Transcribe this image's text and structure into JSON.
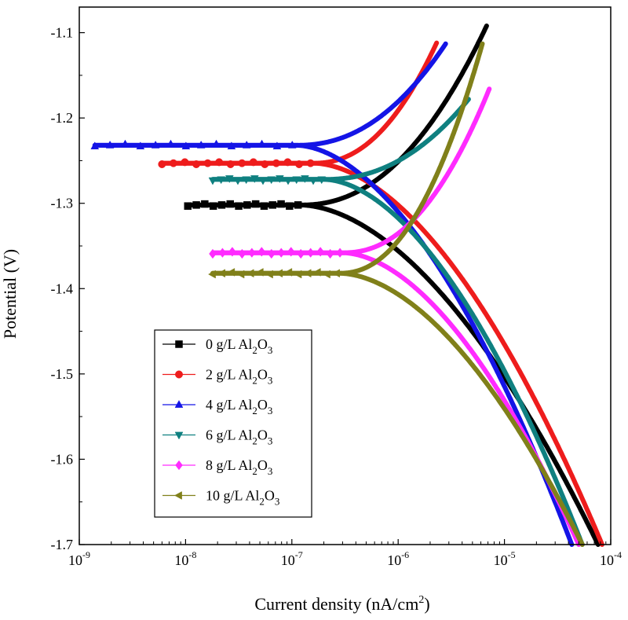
{
  "chart_data": {
    "type": "line",
    "title": "",
    "xlabel": "Current density (nA/cm²)",
    "ylabel": "Potential (V)",
    "xscale": "log",
    "xlim": [
      1e-09,
      0.0001
    ],
    "ylim": [
      -1.7,
      -1.07
    ],
    "x_ticks": [
      1e-09,
      1e-08,
      1e-07,
      1e-06,
      1e-05,
      0.0001
    ],
    "x_tick_labels": [
      {
        "base": "10",
        "exp": "-9"
      },
      {
        "base": "10",
        "exp": "-8"
      },
      {
        "base": "10",
        "exp": "-7"
      },
      {
        "base": "10",
        "exp": "-6"
      },
      {
        "base": "10",
        "exp": "-5"
      },
      {
        "base": "10",
        "exp": "-4"
      }
    ],
    "y_ticks": [
      -1.7,
      -1.6,
      -1.5,
      -1.4,
      -1.3,
      -1.2,
      -1.1
    ],
    "y_tick_labels": [
      "-1.7",
      "-1.6",
      "-1.5",
      "-1.4",
      "-1.3",
      "-1.2",
      "-1.1"
    ],
    "grid": false,
    "legend_position": "bottom-left",
    "series": [
      {
        "name": "0 g/L Al2O3",
        "label_parts": [
          "0 g/L Al",
          "2",
          "O",
          "3"
        ],
        "color": "#000000",
        "marker": "square",
        "ecorr": -1.302,
        "icorr": 1.2e-07,
        "anodic_end": [
          6.8e-06,
          -1.092
        ],
        "cathodic_end": [
          7.6e-05,
          -1.7
        ],
        "start_x": 1.05e-08
      },
      {
        "name": "2 g/L Al2O3",
        "label_parts": [
          "2 g/L Al",
          "2",
          "O",
          "3"
        ],
        "color": "#ee1c1c",
        "marker": "circle",
        "ecorr": -1.253,
        "icorr": 1.6e-07,
        "anodic_end": [
          2.3e-06,
          -1.112
        ],
        "cathodic_end": [
          8.3e-05,
          -1.7
        ],
        "start_x": 6e-09
      },
      {
        "name": "4 g/L Al2O3",
        "label_parts": [
          "4 g/L Al",
          "2",
          "O",
          "3"
        ],
        "color": "#1414e6",
        "marker": "triangle-up",
        "ecorr": -1.232,
        "icorr": 1.1e-07,
        "anodic_end": [
          2.8e-06,
          -1.113
        ],
        "cathodic_end": [
          4.3e-05,
          -1.7
        ],
        "start_x": 1.4e-09
      },
      {
        "name": "6 g/L Al2O3",
        "label_parts": [
          "6 g/L Al",
          "2",
          "O",
          "3"
        ],
        "color": "#0f8080",
        "marker": "triangle-down",
        "ecorr": -1.272,
        "icorr": 2e-07,
        "anodic_end": [
          4.6e-06,
          -1.178
        ],
        "cathodic_end": [
          5.4e-05,
          -1.7
        ],
        "start_x": 1.8e-08
      },
      {
        "name": "8 g/L Al2O3",
        "label_parts": [
          "8 g/L Al",
          "2",
          "O",
          "3"
        ],
        "color": "#ff2bff",
        "marker": "diamond",
        "ecorr": -1.358,
        "icorr": 3e-07,
        "anodic_end": [
          7.2e-06,
          -1.166
        ],
        "cathodic_end": [
          5e-05,
          -1.7
        ],
        "start_x": 1.8e-08
      },
      {
        "name": "10 g/L Al2O3",
        "label_parts": [
          "10 g/L Al",
          "2",
          "O",
          "3"
        ],
        "color": "#80801a",
        "marker": "triangle-left",
        "ecorr": -1.382,
        "icorr": 2.8e-07,
        "anodic_end": [
          6.2e-06,
          -1.113
        ],
        "cathodic_end": [
          5.4e-05,
          -1.7
        ],
        "start_x": 1.8e-08
      }
    ]
  }
}
